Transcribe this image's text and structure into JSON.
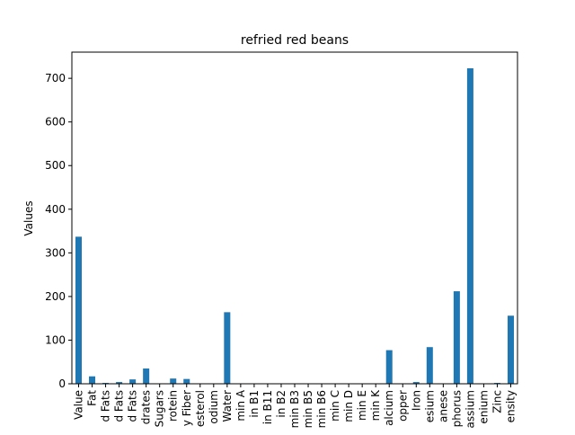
{
  "chart_data": {
    "type": "bar",
    "title": "refried red beans",
    "xlabel": "",
    "ylabel": "Values",
    "ylim": [
      0,
      760
    ],
    "yticks": [
      0,
      100,
      200,
      300,
      400,
      500,
      600,
      700
    ],
    "grid": false,
    "legend": "none",
    "bar_color": "#1f77b4",
    "categories": [
      "Value",
      "Fat",
      "d Fats",
      "d Fats",
      "d Fats",
      "drates",
      "Sugars",
      "rotein",
      "y Fiber",
      "esterol",
      "odium",
      "Water",
      "min A",
      "in B1",
      "in B11",
      "in B2",
      "min B3",
      "min B5",
      "min B6",
      "min C",
      "min D",
      "min E",
      "min K",
      "alcium",
      "opper",
      "Iron",
      "esium",
      "anese",
      "phorus",
      "assium",
      "enium",
      "Zinc",
      "ensity"
    ],
    "values": [
      337,
      17,
      2,
      4,
      10,
      35,
      0,
      12,
      11,
      0,
      0,
      164,
      0,
      0,
      0,
      0,
      1,
      0,
      0,
      0,
      0,
      1,
      0,
      77,
      0,
      4,
      84,
      0,
      212,
      723,
      0,
      2,
      156
    ]
  }
}
